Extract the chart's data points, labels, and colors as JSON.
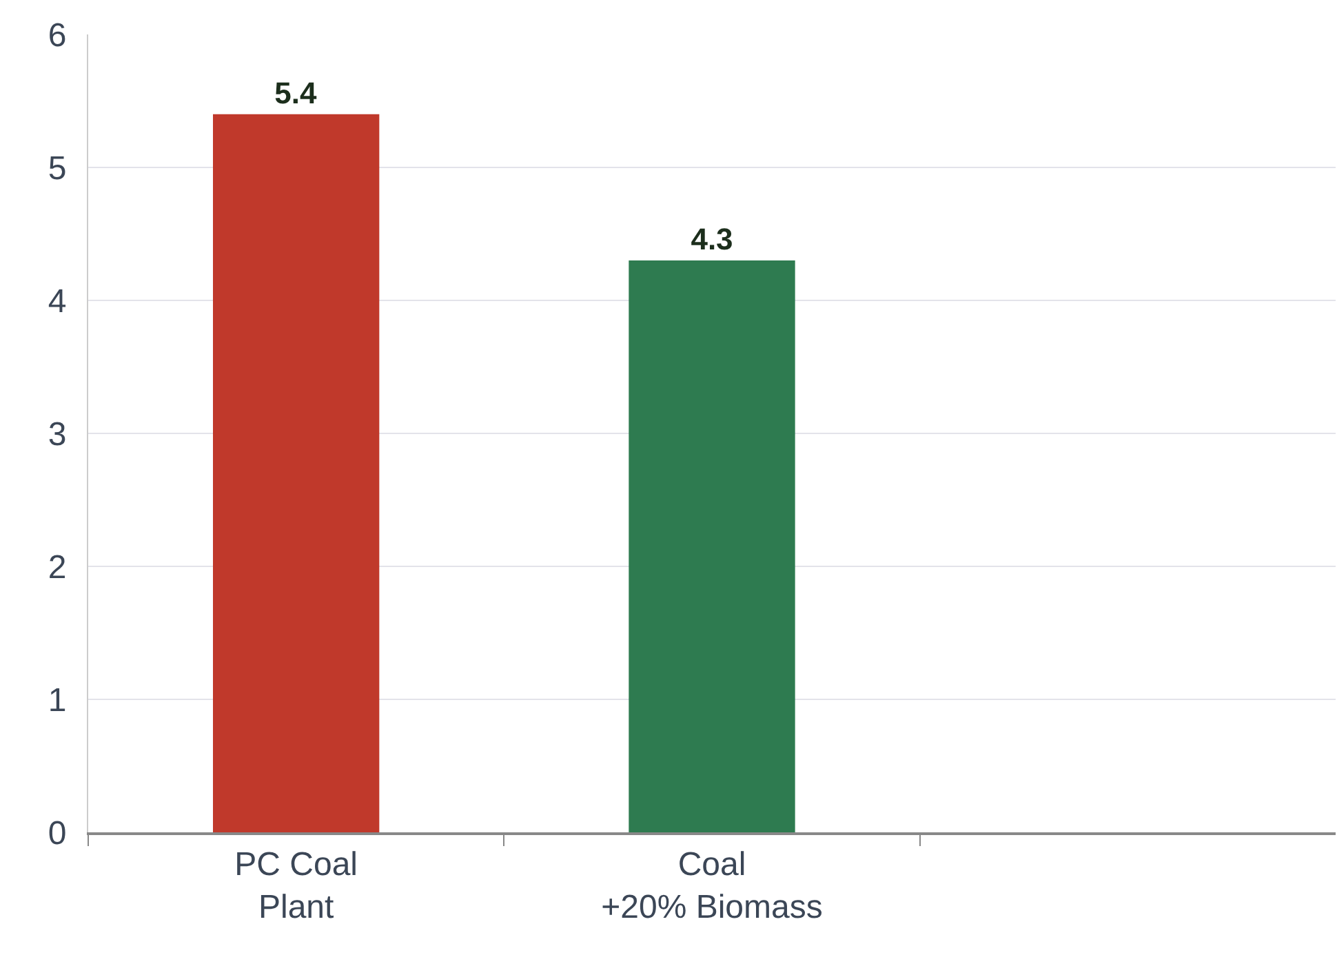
{
  "chart_data": {
    "type": "bar",
    "categories": [
      "PC Coal\nPlant",
      "Coal\n+20% Biomass",
      null
    ],
    "values": [
      5.4,
      4.3,
      null
    ],
    "colors": [
      "#c0392b",
      "#2e7b50",
      "#2e7b50"
    ],
    "ylim": [
      0,
      6
    ],
    "yticks": [
      0,
      1,
      2,
      3,
      4,
      5,
      6
    ],
    "grid": "y",
    "data_labels": true
  }
}
